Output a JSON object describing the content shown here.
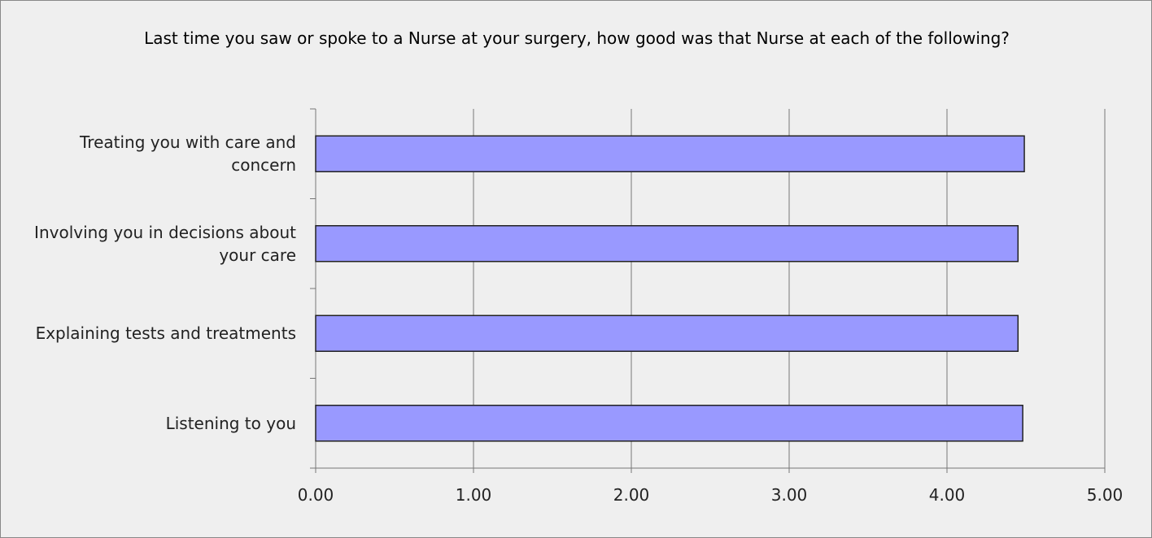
{
  "chart_data": {
    "type": "bar",
    "orientation": "horizontal",
    "title": "Last time you saw or spoke to a Nurse at your surgery, how good was that Nurse at each of the following?",
    "categories": [
      "Treating you with care and concern",
      "Involving you in decisions about your care",
      "Explaining tests and treatments",
      "Listening to you"
    ],
    "values": [
      4.49,
      4.45,
      4.45,
      4.48
    ],
    "color": "#9999ff",
    "xlim": [
      0,
      5
    ],
    "xticks": [
      {
        "value": 0,
        "label": "0.00"
      },
      {
        "value": 1,
        "label": "1.00"
      },
      {
        "value": 2,
        "label": "2.00"
      },
      {
        "value": 3,
        "label": "3.00"
      },
      {
        "value": 4,
        "label": "4.00"
      },
      {
        "value": 5,
        "label": "5.00"
      }
    ],
    "grid": true
  }
}
